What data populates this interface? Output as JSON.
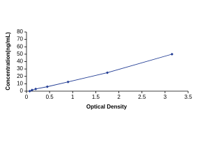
{
  "chart_data": {
    "type": "scatter-line",
    "x_label": "Optical Density",
    "y_label": "Concentration(ng/mL)",
    "x": [
      0.07,
      0.12,
      0.2,
      0.45,
      0.9,
      1.75,
      3.15
    ],
    "series": [
      {
        "color": "#1f3a93",
        "values": [
          0,
          1.5,
          3,
          6,
          12.5,
          25,
          50
        ]
      }
    ],
    "xlim": [
      0,
      3.5
    ],
    "xticks": [
      0,
      0.5,
      1,
      1.5,
      2,
      2.5,
      3,
      3.5
    ],
    "ylim": [
      0,
      80
    ],
    "yticks": [
      0,
      10,
      20,
      30,
      40,
      50,
      60,
      70,
      80
    ]
  }
}
